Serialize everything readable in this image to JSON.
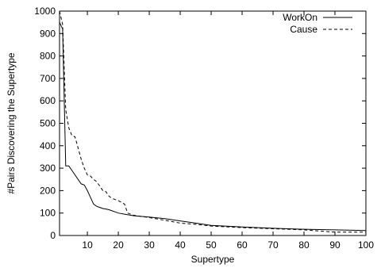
{
  "chart_data": {
    "type": "line",
    "xlabel": "Supertype",
    "ylabel": "#Pairs Discovering the Supertype",
    "xlim": [
      1,
      100
    ],
    "ylim": [
      0,
      1000
    ],
    "xticks": [
      10,
      20,
      30,
      40,
      50,
      60,
      70,
      80,
      90,
      100
    ],
    "yticks": [
      0,
      100,
      200,
      300,
      400,
      500,
      600,
      700,
      800,
      900,
      1000
    ],
    "grid": false,
    "legend_position": "top-right",
    "series": [
      {
        "name": "WorkOn",
        "line_style": "solid",
        "x": [
          1,
          2,
          3,
          4,
          5,
          6,
          7,
          8,
          9,
          10,
          11,
          12,
          13,
          14,
          15,
          16,
          17,
          18,
          19,
          20,
          22,
          25,
          30,
          35,
          40,
          45,
          50,
          60,
          70,
          80,
          90,
          100
        ],
        "y": [
          950,
          920,
          310,
          310,
          290,
          270,
          250,
          230,
          225,
          200,
          170,
          140,
          130,
          125,
          120,
          118,
          115,
          110,
          105,
          100,
          95,
          88,
          82,
          75,
          65,
          55,
          45,
          38,
          32,
          28,
          25,
          22
        ]
      },
      {
        "name": "Cause",
        "line_style": "dashed",
        "x": [
          1,
          2,
          3,
          4,
          5,
          6,
          7,
          8,
          9,
          10,
          11,
          12,
          13,
          14,
          15,
          16,
          17,
          18,
          19,
          20,
          22,
          23,
          25,
          30,
          35,
          40,
          45,
          50,
          60,
          70,
          80,
          90,
          100
        ],
        "y": [
          1000,
          940,
          560,
          480,
          445,
          440,
          390,
          340,
          300,
          270,
          265,
          250,
          240,
          220,
          200,
          195,
          175,
          165,
          160,
          155,
          140,
          100,
          90,
          80,
          68,
          55,
          50,
          42,
          35,
          30,
          25,
          15,
          15
        ]
      }
    ]
  }
}
